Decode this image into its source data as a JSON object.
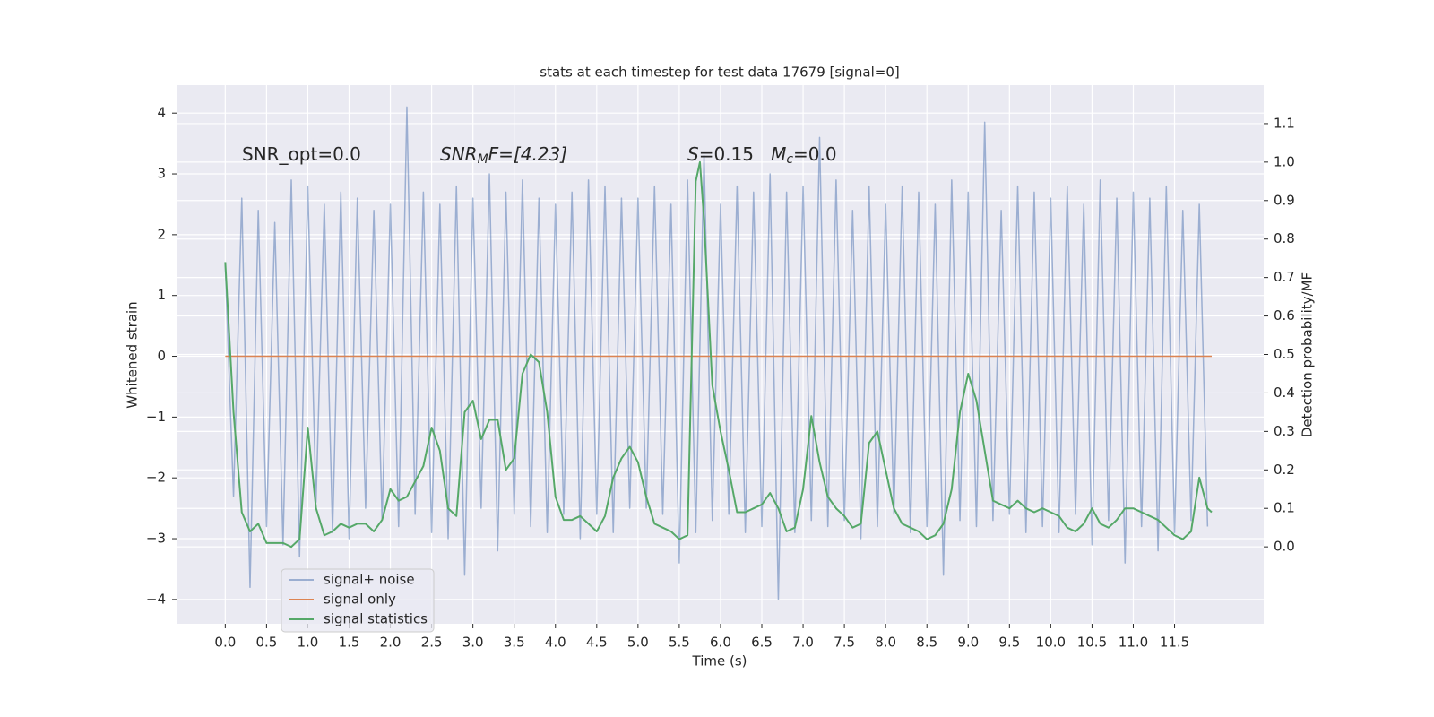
{
  "chart_data": {
    "type": "line",
    "title": "stats at each timestep for test data 17679 [signal=0]",
    "xlabel": "Time (s)",
    "ylabel": "Whitened strain",
    "y2label": "Detection probability/MF",
    "xlim": [
      -0.59,
      12.58
    ],
    "ylim": [
      -4.4,
      4.46
    ],
    "y2lim": [
      -0.2,
      1.2
    ],
    "xticks": [
      {
        "value": 0,
        "label": "0.0"
      },
      0.5,
      {
        "value": 1,
        "label": "1.0"
      },
      1.5,
      {
        "value": 2,
        "label": "2.0"
      },
      2.5,
      {
        "value": 3,
        "label": "3.0"
      },
      3.5,
      {
        "value": 4,
        "label": "4.0"
      },
      4.5,
      {
        "value": 5,
        "label": "5.0"
      },
      5.5,
      {
        "value": 6,
        "label": "6.0"
      },
      6.5,
      {
        "value": 7,
        "label": "7.0"
      },
      7.5,
      {
        "value": 8,
        "label": "8.0"
      },
      8.5,
      {
        "value": 9,
        "label": "9.0"
      },
      9.5,
      {
        "value": 10,
        "label": "10.0"
      },
      10.5,
      {
        "value": 11,
        "label": "11.0"
      },
      11.5
    ],
    "yticks": [
      {
        "value": -4,
        "label": "−4"
      },
      {
        "value": -3,
        "label": "−3"
      },
      {
        "value": -2,
        "label": "−2"
      },
      {
        "value": -1,
        "label": "−1"
      },
      0,
      1,
      2,
      3,
      4
    ],
    "y2ticks": [
      {
        "value": 0,
        "label": "0.0"
      },
      0.1,
      0.2,
      0.3,
      0.4,
      0.5,
      0.6,
      0.7,
      0.8,
      0.9,
      {
        "value": 1,
        "label": "1.0"
      },
      1.1
    ],
    "grid": true,
    "legend_position": "lower left",
    "annotations": [
      [
        {
          "text": "SNR_opt=0.0"
        }
      ],
      [
        {
          "text": "SNR",
          "italic": true
        },
        {
          "text": "M",
          "italic": true,
          "sub": true
        },
        {
          "text": "F=[4.23]",
          "italic": true
        }
      ],
      [
        {
          "text": "S",
          "italic": true
        },
        {
          "text": "=0.15   "
        },
        {
          "text": "M",
          "italic": true
        },
        {
          "text": "c",
          "italic": true,
          "sub": true
        },
        {
          "text": "=0.0"
        }
      ]
    ],
    "series": [
      {
        "name": "signal+ noise",
        "color": "#4c72b0",
        "alpha": 0.5,
        "x": [
          0.0,
          0.1,
          0.2,
          0.3,
          0.4,
          0.5,
          0.6,
          0.7,
          0.8,
          0.9,
          1.0,
          1.1,
          1.2,
          1.3,
          1.4,
          1.5,
          1.6,
          1.7,
          1.8,
          1.9,
          2.0,
          2.1,
          2.2,
          2.3,
          2.4,
          2.5,
          2.6,
          2.7,
          2.8,
          2.9,
          3.0,
          3.1,
          3.2,
          3.3,
          3.4,
          3.5,
          3.6,
          3.7,
          3.8,
          3.9,
          4.0,
          4.1,
          4.2,
          4.3,
          4.4,
          4.5,
          4.6,
          4.7,
          4.8,
          4.9,
          5.0,
          5.1,
          5.2,
          5.3,
          5.4,
          5.5,
          5.6,
          5.7,
          5.8,
          5.9,
          6.0,
          6.1,
          6.2,
          6.3,
          6.4,
          6.5,
          6.6,
          6.7,
          6.8,
          6.9,
          7.0,
          7.1,
          7.2,
          7.3,
          7.4,
          7.5,
          7.6,
          7.7,
          7.8,
          7.9,
          8.0,
          8.1,
          8.2,
          8.3,
          8.4,
          8.5,
          8.6,
          8.7,
          8.8,
          8.9,
          9.0,
          9.1,
          9.2,
          9.3,
          9.4,
          9.5,
          9.6,
          9.7,
          9.8,
          9.9,
          10.0,
          10.1,
          10.2,
          10.3,
          10.4,
          10.5,
          10.6,
          10.7,
          10.8,
          10.9,
          11.0,
          11.1,
          11.2,
          11.3,
          11.4,
          11.5,
          11.6,
          11.7,
          11.8,
          11.9
        ],
        "values": [
          1.5,
          -2.3,
          2.6,
          -3.8,
          2.4,
          -2.8,
          2.2,
          -3.1,
          2.9,
          -3.3,
          2.8,
          -2.4,
          2.5,
          -2.9,
          2.7,
          -3.0,
          2.6,
          -2.5,
          2.4,
          -2.7,
          2.5,
          -2.8,
          4.1,
          -2.6,
          2.7,
          -2.9,
          2.5,
          -3.0,
          2.8,
          -3.6,
          2.6,
          -2.5,
          3.0,
          -3.2,
          2.7,
          -2.6,
          2.9,
          -2.8,
          2.6,
          -2.9,
          2.5,
          -2.6,
          2.7,
          -3.0,
          2.9,
          -2.6,
          2.8,
          -2.9,
          2.6,
          -2.5,
          2.6,
          -2.5,
          2.8,
          -2.6,
          2.5,
          -3.4,
          2.9,
          -2.9,
          3.3,
          -2.7,
          2.5,
          -2.6,
          2.8,
          -2.9,
          2.7,
          -2.8,
          3.0,
          -4.0,
          2.7,
          -2.9,
          2.8,
          -2.7,
          3.6,
          -2.8,
          2.9,
          -2.7,
          2.4,
          -3.0,
          2.8,
          -2.8,
          2.5,
          -2.6,
          2.8,
          -2.9,
          2.7,
          -2.8,
          2.5,
          -3.6,
          2.9,
          -2.7,
          2.7,
          -2.8,
          3.85,
          -2.7,
          2.4,
          -2.6,
          2.8,
          -2.9,
          2.7,
          -2.8,
          2.6,
          -2.9,
          2.8,
          -2.6,
          2.5,
          -3.1,
          2.9,
          -2.7,
          2.6,
          -3.4,
          2.7,
          -2.8,
          2.6,
          -3.2,
          2.8,
          -2.9,
          2.4,
          -2.7,
          2.5,
          -2.8
        ]
      },
      {
        "name": "signal only",
        "color": "#dd8452",
        "x": [
          0.0,
          11.95
        ],
        "values": [
          0,
          0
        ]
      },
      {
        "name": "signal statistics",
        "color": "#55a868",
        "axis": "y2",
        "x": [
          0.0,
          0.1,
          0.2,
          0.3,
          0.4,
          0.5,
          0.6,
          0.7,
          0.8,
          0.9,
          1.0,
          1.1,
          1.2,
          1.3,
          1.4,
          1.5,
          1.6,
          1.7,
          1.8,
          1.9,
          2.0,
          2.1,
          2.2,
          2.3,
          2.4,
          2.5,
          2.6,
          2.7,
          2.8,
          2.9,
          3.0,
          3.1,
          3.2,
          3.3,
          3.4,
          3.5,
          3.6,
          3.7,
          3.8,
          3.9,
          4.0,
          4.1,
          4.2,
          4.3,
          4.4,
          4.5,
          4.6,
          4.7,
          4.8,
          4.9,
          5.0,
          5.1,
          5.2,
          5.3,
          5.4,
          5.5,
          5.6,
          5.7,
          5.75,
          5.8,
          5.9,
          6.0,
          6.1,
          6.2,
          6.3,
          6.4,
          6.5,
          6.6,
          6.7,
          6.8,
          6.9,
          7.0,
          7.1,
          7.2,
          7.3,
          7.4,
          7.5,
          7.6,
          7.7,
          7.8,
          7.9,
          8.0,
          8.1,
          8.2,
          8.3,
          8.4,
          8.5,
          8.6,
          8.7,
          8.8,
          8.9,
          9.0,
          9.1,
          9.2,
          9.3,
          9.4,
          9.5,
          9.6,
          9.7,
          9.8,
          9.9,
          10.0,
          10.1,
          10.2,
          10.3,
          10.4,
          10.5,
          10.6,
          10.7,
          10.8,
          10.9,
          11.0,
          11.1,
          11.2,
          11.3,
          11.4,
          11.5,
          11.6,
          11.7,
          11.8,
          11.9,
          11.95
        ],
        "values": [
          0.74,
          0.35,
          0.09,
          0.04,
          0.06,
          0.01,
          0.01,
          0.01,
          0.0,
          0.02,
          0.31,
          0.1,
          0.03,
          0.04,
          0.06,
          0.05,
          0.06,
          0.06,
          0.04,
          0.07,
          0.15,
          0.12,
          0.13,
          0.17,
          0.21,
          0.31,
          0.25,
          0.1,
          0.08,
          0.35,
          0.38,
          0.28,
          0.33,
          0.33,
          0.2,
          0.23,
          0.45,
          0.5,
          0.48,
          0.35,
          0.13,
          0.07,
          0.07,
          0.08,
          0.06,
          0.04,
          0.08,
          0.18,
          0.23,
          0.26,
          0.22,
          0.13,
          0.06,
          0.05,
          0.04,
          0.02,
          0.03,
          0.95,
          1.0,
          0.85,
          0.42,
          0.3,
          0.2,
          0.09,
          0.09,
          0.1,
          0.11,
          0.14,
          0.1,
          0.04,
          0.05,
          0.15,
          0.34,
          0.22,
          0.13,
          0.1,
          0.08,
          0.05,
          0.06,
          0.27,
          0.3,
          0.2,
          0.1,
          0.06,
          0.05,
          0.04,
          0.02,
          0.03,
          0.06,
          0.15,
          0.35,
          0.45,
          0.38,
          0.25,
          0.12,
          0.11,
          0.1,
          0.12,
          0.1,
          0.09,
          0.1,
          0.09,
          0.08,
          0.05,
          0.04,
          0.06,
          0.1,
          0.06,
          0.05,
          0.07,
          0.1,
          0.1,
          0.09,
          0.08,
          0.07,
          0.05,
          0.03,
          0.02,
          0.04,
          0.18,
          0.1,
          0.09
        ]
      }
    ]
  }
}
